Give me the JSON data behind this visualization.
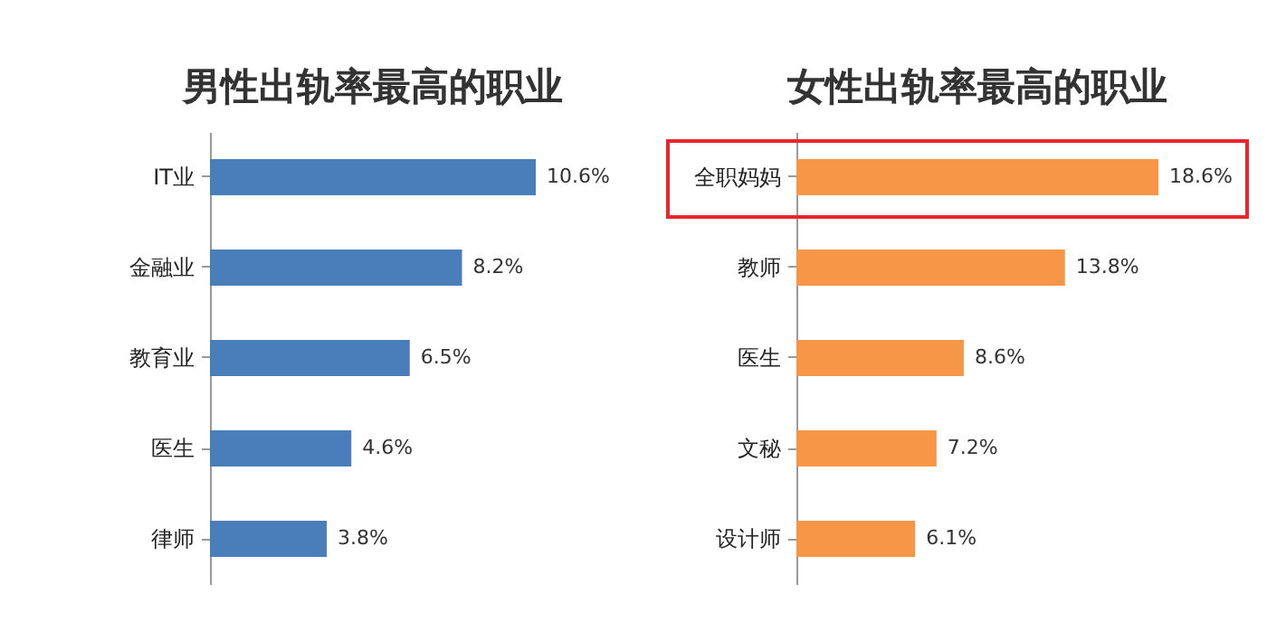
{
  "chart_data": [
    {
      "type": "bar",
      "orientation": "horizontal",
      "title": "男性出轨率最高的职业",
      "categories": [
        "IT业",
        "金融业",
        "教育业",
        "医生",
        "律师"
      ],
      "values": [
        10.6,
        8.2,
        6.5,
        4.6,
        3.8
      ],
      "value_labels": [
        "10.6%",
        "8.2%",
        "6.5%",
        "4.6%",
        "3.8%"
      ],
      "color": "#4a7ebb",
      "tick_labels": "y"
    },
    {
      "type": "bar",
      "orientation": "horizontal",
      "title": "女性出轨率最高的职业",
      "categories": [
        "全职妈妈",
        "教师",
        "医生",
        "文秘",
        "设计师"
      ],
      "values": [
        18.6,
        13.8,
        8.6,
        7.2,
        6.1
      ],
      "value_labels": [
        "18.6%",
        "13.8%",
        "8.6%",
        "7.2%",
        "6.1%"
      ],
      "color": "#f79646",
      "tick_labels": "y"
    }
  ]
}
